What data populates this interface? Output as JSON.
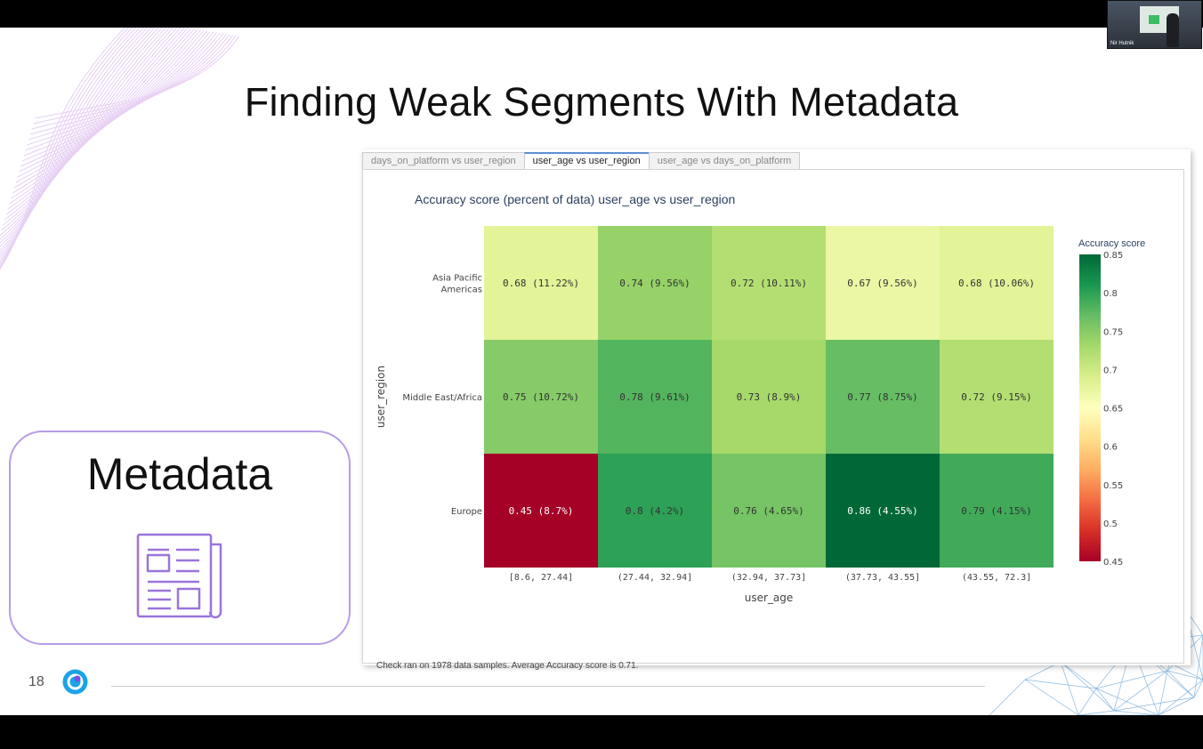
{
  "slide": {
    "title": "Finding Weak Segments With Metadata",
    "card_label": "Metadata",
    "page_number": "18"
  },
  "webcam": {
    "name": "Nir Hutnik"
  },
  "tabs": [
    {
      "label": "days_on_platform vs user_region",
      "active": false
    },
    {
      "label": "user_age vs user_region",
      "active": true
    },
    {
      "label": "user_age vs days_on_platform",
      "active": false
    }
  ],
  "note": "Check ran on 1978 data samples. Average Accuracy score is 0.71.",
  "chart_data": {
    "type": "heatmap",
    "title": "Accuracy score (percent of data) user_age vs user_region",
    "xlabel": "user_age",
    "ylabel": "user_region",
    "x_categories": [
      "[8.6, 27.44]",
      "(27.44, 32.94]",
      "(32.94, 37.73]",
      "(37.73, 43.55]",
      "(43.55, 72.3]"
    ],
    "y_categories": [
      "Asia Pacific\nAmericas",
      "Middle East/Africa",
      "Europe"
    ],
    "y_tick_lines": [
      [
        "Asia Pacific",
        "Americas"
      ],
      [
        "Middle East/Africa"
      ],
      [
        "Europe"
      ]
    ],
    "values": [
      [
        0.68,
        0.74,
        0.72,
        0.67,
        0.68
      ],
      [
        0.75,
        0.78,
        0.73,
        0.77,
        0.72
      ],
      [
        0.45,
        0.8,
        0.76,
        0.86,
        0.79
      ]
    ],
    "cell_labels": [
      [
        "0.68 (11.22%)",
        "0.74 (9.56%)",
        "0.72 (10.11%)",
        "0.67 (9.56%)",
        "0.68 (10.06%)"
      ],
      [
        "0.75 (10.72%)",
        "0.78 (9.61%)",
        "0.73 (8.9%)",
        "0.77 (8.75%)",
        "0.72 (9.15%)"
      ],
      [
        "0.45 (8.7%)",
        "0.8 (4.2%)",
        "0.76 (4.65%)",
        "0.86 (4.55%)",
        "0.79 (4.15%)"
      ]
    ],
    "colorscale": "RdYlGn",
    "colorbar": {
      "title": "Accuracy score",
      "range": [
        0.45,
        0.85
      ],
      "ticks": [
        "0.85",
        "0.8",
        "0.75",
        "0.7",
        "0.65",
        "0.6",
        "0.55",
        "0.5",
        "0.45"
      ]
    }
  },
  "colors": {
    "accent_purple": "#b79ce8",
    "tab_active_border": "#5b8fd6",
    "logo_blue": "#1aa3e8"
  },
  "icons": {
    "card_icon": "newspaper-icon",
    "logo": "brand-logo-icon"
  }
}
